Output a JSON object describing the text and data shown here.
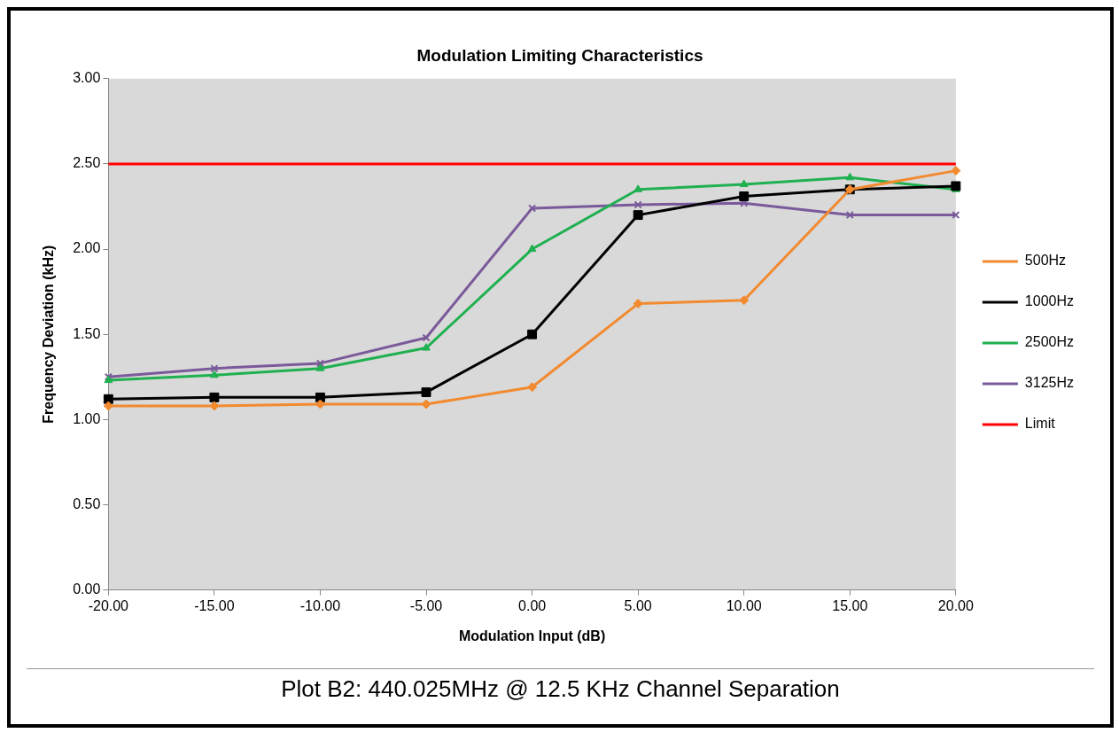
{
  "chart_data": {
    "type": "line",
    "title": "Modulation Limiting Characteristics",
    "xlabel": "Modulation Input (dB)",
    "ylabel": "Frequency Deviation (kHz)",
    "x": [
      -20,
      -15,
      -10,
      -5,
      0,
      5,
      10,
      15,
      20
    ],
    "xlim": [
      -20,
      20
    ],
    "xticks": [
      {
        "value": -20,
        "label": "-20.00"
      },
      {
        "value": -15,
        "label": "-15.00"
      },
      {
        "value": -10,
        "label": "-10.00"
      },
      {
        "value": -5,
        "label": "-5.00"
      },
      {
        "value": 0,
        "label": "0.00"
      },
      {
        "value": 5,
        "label": "5.00"
      },
      {
        "value": 10,
        "label": "10.00"
      },
      {
        "value": 15,
        "label": "15.00"
      },
      {
        "value": 20,
        "label": "20.00"
      }
    ],
    "ylim": [
      0,
      3
    ],
    "yticks": [
      {
        "value": 0,
        "label": "0.00"
      },
      {
        "value": 0.5,
        "label": "0.50"
      },
      {
        "value": 1,
        "label": "1.00"
      },
      {
        "value": 1.5,
        "label": "1.50"
      },
      {
        "value": 2,
        "label": "2.00"
      },
      {
        "value": 2.5,
        "label": "2.50"
      },
      {
        "value": 3,
        "label": "3.00"
      }
    ],
    "grid": false,
    "legend": "right",
    "line_style": "solid",
    "series": [
      {
        "name": "500Hz",
        "color": "#f28a30",
        "marker": "diamond",
        "values": [
          1.08,
          1.08,
          1.09,
          1.09,
          1.19,
          1.68,
          1.7,
          2.35,
          2.46
        ]
      },
      {
        "name": "1000Hz",
        "color": "#000000",
        "marker": "square",
        "values": [
          1.12,
          1.13,
          1.13,
          1.16,
          1.5,
          2.2,
          2.31,
          2.35,
          2.37
        ]
      },
      {
        "name": "2500Hz",
        "color": "#1fb050",
        "marker": "triangle",
        "values": [
          1.23,
          1.26,
          1.3,
          1.42,
          2.0,
          2.35,
          2.38,
          2.42,
          2.35
        ]
      },
      {
        "name": "3125Hz",
        "color": "#7a5a9a",
        "marker": "cross",
        "values": [
          1.25,
          1.3,
          1.33,
          1.48,
          2.24,
          2.26,
          2.27,
          2.2,
          2.2
        ]
      },
      {
        "name": "Limit",
        "color": "#ff0000",
        "marker": "none",
        "x": [
          -20,
          20
        ],
        "values": [
          2.5,
          2.5
        ]
      }
    ],
    "annotations": [
      "Plot B2: 440.025MHz @ 12.5 KHz Channel Separation"
    ]
  }
}
